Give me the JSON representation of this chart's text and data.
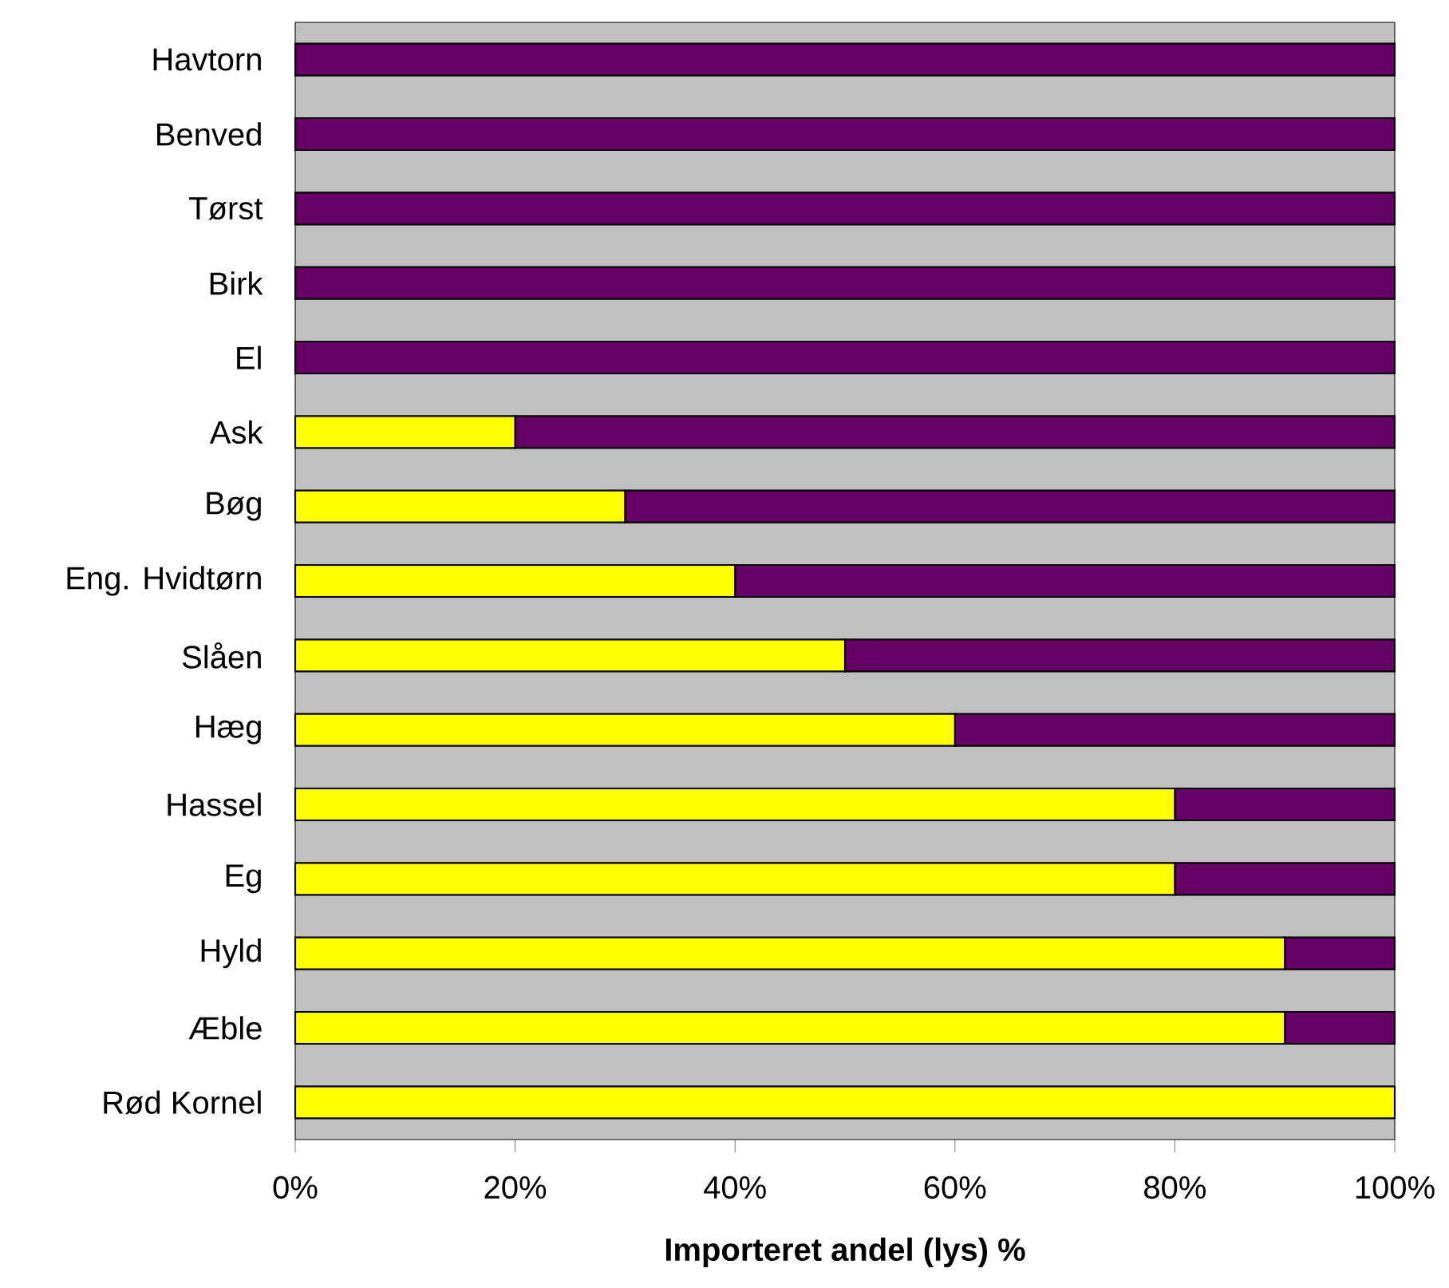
{
  "chart_data": {
    "type": "bar",
    "orientation": "horizontal",
    "stacked": true,
    "xlabel": "Importeret andel (lys) %",
    "categories": [
      "Havtorn",
      "Benved",
      "Tørst",
      "Birk",
      "El",
      "Ask",
      "Bøg",
      "Eng. Hvidtørn",
      "Slåen",
      "Hæg",
      "Hassel",
      "Eg",
      "Hyld",
      "Æble",
      "Rød Kornel"
    ],
    "series": [
      {
        "color": "#ffff00",
        "values": [
          0,
          0,
          0,
          0,
          0,
          20,
          30,
          40,
          50,
          60,
          80,
          80,
          90,
          90,
          100
        ]
      },
      {
        "color": "#660066",
        "values": [
          100,
          100,
          100,
          100,
          100,
          80,
          70,
          60,
          50,
          40,
          20,
          20,
          10,
          10,
          0
        ]
      }
    ],
    "xlim": [
      0,
      100
    ],
    "xticks": [
      {
        "value": 0,
        "label": "0%"
      },
      {
        "value": 20,
        "label": "20%"
      },
      {
        "value": 40,
        "label": "40%"
      },
      {
        "value": 60,
        "label": "60%"
      },
      {
        "value": 80,
        "label": "80%"
      },
      {
        "value": 100,
        "label": "100%"
      }
    ]
  }
}
